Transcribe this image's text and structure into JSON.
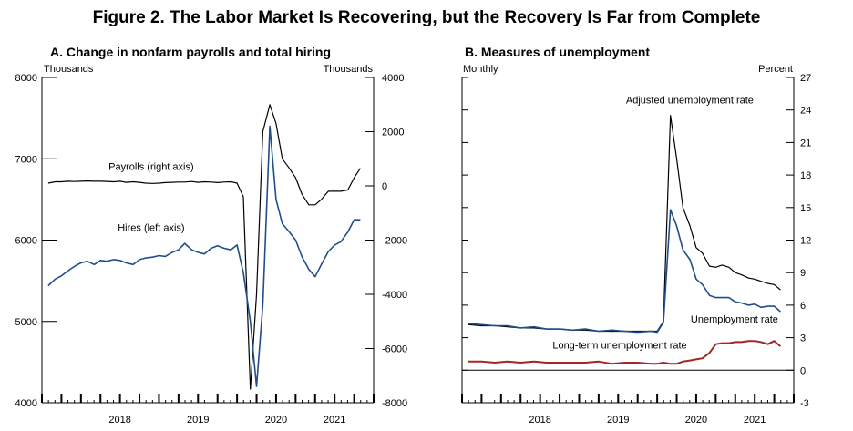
{
  "figure_title": "Figure 2. The Labor Market Is Recovering, but the Recovery Is Far from Complete",
  "colors": {
    "black": "#000000",
    "blue": "#1f4e8c",
    "red": "#a3262a"
  },
  "chart_data": [
    {
      "type": "line",
      "title": "A. Change in nonfarm payrolls and total hiring",
      "left_unit": "Thousands",
      "right_unit": "Thousands",
      "x_axis": {
        "labels": [
          "2018",
          "2019",
          "2020",
          "2021"
        ],
        "label_positions": [
          2018.5,
          2019.5,
          2020.5,
          2021.25
        ],
        "range": [
          2017.5,
          2021.75
        ]
      },
      "y_left": {
        "range": [
          4000,
          8000
        ],
        "ticks": [
          4000,
          5000,
          6000,
          7000,
          8000
        ]
      },
      "y_right": {
        "range": [
          -8000,
          4000
        ],
        "ticks": [
          -8000,
          -6000,
          -4000,
          -2000,
          0,
          2000,
          4000
        ]
      },
      "series": [
        {
          "name": "Payrolls (right axis)",
          "axis": "right",
          "color": "#000000",
          "x": [
            2017.58,
            2017.67,
            2017.75,
            2017.83,
            2017.92,
            2018.0,
            2018.08,
            2018.17,
            2018.25,
            2018.33,
            2018.42,
            2018.5,
            2018.58,
            2018.67,
            2018.75,
            2018.83,
            2018.92,
            2019.0,
            2019.08,
            2019.17,
            2019.25,
            2019.33,
            2019.42,
            2019.5,
            2019.58,
            2019.67,
            2019.75,
            2019.83,
            2019.92,
            2020.0,
            2020.08,
            2020.17,
            2020.25,
            2020.33,
            2020.42,
            2020.5,
            2020.58,
            2020.67,
            2020.75,
            2020.83,
            2020.92,
            2021.0,
            2021.08,
            2021.17,
            2021.25,
            2021.33,
            2021.42,
            2021.5,
            2021.58
          ],
          "values": [
            100,
            150,
            150,
            170,
            160,
            170,
            180,
            170,
            170,
            165,
            150,
            170,
            130,
            150,
            130,
            100,
            90,
            100,
            120,
            130,
            140,
            140,
            160,
            130,
            150,
            140,
            120,
            140,
            150,
            100,
            -400,
            -7500,
            -4000,
            2000,
            3000,
            2300,
            1000,
            650,
            300,
            -300,
            -700,
            -700,
            -500,
            -200,
            -200,
            -200,
            -150,
            300,
            650
          ],
          "label_x": 2018.9,
          "label_y": 580
        },
        {
          "name": "Hires (left axis)",
          "axis": "left",
          "color": "#1f4e8c",
          "x": [
            2017.58,
            2017.67,
            2017.75,
            2017.83,
            2017.92,
            2018.0,
            2018.08,
            2018.17,
            2018.25,
            2018.33,
            2018.42,
            2018.5,
            2018.58,
            2018.67,
            2018.75,
            2018.83,
            2018.92,
            2019.0,
            2019.08,
            2019.17,
            2019.25,
            2019.33,
            2019.42,
            2019.5,
            2019.58,
            2019.67,
            2019.75,
            2019.83,
            2019.92,
            2020.0,
            2020.08,
            2020.17,
            2020.25,
            2020.33,
            2020.42,
            2020.5,
            2020.58,
            2020.67,
            2020.75,
            2020.83,
            2020.92,
            2021.0,
            2021.08,
            2021.17,
            2021.25,
            2021.33,
            2021.42,
            2021.5,
            2021.58
          ],
          "values": [
            5440,
            5520,
            5560,
            5620,
            5680,
            5720,
            5740,
            5700,
            5750,
            5740,
            5760,
            5750,
            5720,
            5700,
            5760,
            5780,
            5790,
            5810,
            5800,
            5850,
            5880,
            5960,
            5880,
            5850,
            5830,
            5900,
            5930,
            5900,
            5880,
            5940,
            5600,
            5000,
            4200,
            5200,
            7400,
            6500,
            6200,
            6100,
            6000,
            5800,
            5640,
            5550,
            5700,
            5860,
            5940,
            5980,
            6100,
            6250,
            6250
          ],
          "label_x": 2018.9,
          "label_y": 6110
        }
      ]
    },
    {
      "type": "line",
      "title": "B. Measures of unemployment",
      "left_unit": "Monthly",
      "right_unit": "Percent",
      "x_axis": {
        "labels": [
          "2018",
          "2019",
          "2020",
          "2021"
        ],
        "label_positions": [
          2018.5,
          2019.5,
          2020.5,
          2021.25
        ],
        "range": [
          2017.5,
          2021.75
        ]
      },
      "y_right": {
        "range": [
          -3,
          27
        ],
        "ticks": [
          -3,
          0,
          3,
          6,
          9,
          12,
          15,
          18,
          21,
          24,
          27
        ]
      },
      "series": [
        {
          "name": "Adjusted unemployment rate",
          "axis": "right",
          "color": "#000000",
          "x": [
            2017.58,
            2017.75,
            2017.92,
            2018.08,
            2018.25,
            2018.42,
            2018.58,
            2018.75,
            2018.92,
            2019.08,
            2019.25,
            2019.42,
            2019.58,
            2019.75,
            2019.92,
            2020.0,
            2020.08,
            2020.17,
            2020.25,
            2020.33,
            2020.42,
            2020.5,
            2020.58,
            2020.67,
            2020.75,
            2020.83,
            2020.92,
            2021.0,
            2021.08,
            2021.17,
            2021.25,
            2021.33,
            2021.42,
            2021.5,
            2021.58
          ],
          "values": [
            4.2,
            4.1,
            4.1,
            4.0,
            3.9,
            3.9,
            3.8,
            3.8,
            3.7,
            3.7,
            3.6,
            3.6,
            3.6,
            3.6,
            3.6,
            3.6,
            4.5,
            23.5,
            19.5,
            15.0,
            13.3,
            11.3,
            10.8,
            9.6,
            9.5,
            9.7,
            9.5,
            9.0,
            8.8,
            8.5,
            8.4,
            8.2,
            8.0,
            7.9,
            7.4
          ]
        },
        {
          "name": "Unemployment rate",
          "axis": "right",
          "color": "#1f4e8c",
          "x": [
            2017.58,
            2017.75,
            2017.92,
            2018.08,
            2018.25,
            2018.42,
            2018.58,
            2018.75,
            2018.92,
            2019.08,
            2019.25,
            2019.42,
            2019.58,
            2019.75,
            2019.92,
            2020.0,
            2020.08,
            2020.17,
            2020.25,
            2020.33,
            2020.42,
            2020.5,
            2020.58,
            2020.67,
            2020.75,
            2020.83,
            2020.92,
            2021.0,
            2021.08,
            2021.17,
            2021.25,
            2021.33,
            2021.42,
            2021.5,
            2021.58
          ],
          "values": [
            4.3,
            4.2,
            4.1,
            4.1,
            3.9,
            4.0,
            3.8,
            3.8,
            3.7,
            3.8,
            3.6,
            3.7,
            3.6,
            3.5,
            3.6,
            3.5,
            4.4,
            14.8,
            13.3,
            11.1,
            10.2,
            8.4,
            7.9,
            6.9,
            6.7,
            6.7,
            6.7,
            6.3,
            6.2,
            6.0,
            6.1,
            5.8,
            5.9,
            5.9,
            5.4
          ]
        },
        {
          "name": "Long-term unemployment rate",
          "axis": "right",
          "color": "#a3262a",
          "x": [
            2017.58,
            2017.75,
            2017.92,
            2018.08,
            2018.25,
            2018.42,
            2018.58,
            2018.75,
            2018.92,
            2019.08,
            2019.25,
            2019.42,
            2019.58,
            2019.75,
            2019.92,
            2020.0,
            2020.08,
            2020.17,
            2020.25,
            2020.33,
            2020.42,
            2020.5,
            2020.58,
            2020.67,
            2020.75,
            2020.83,
            2020.92,
            2021.0,
            2021.08,
            2021.17,
            2021.25,
            2021.33,
            2021.42,
            2021.5,
            2021.58
          ],
          "values": [
            0.8,
            0.8,
            0.7,
            0.8,
            0.7,
            0.8,
            0.7,
            0.7,
            0.7,
            0.7,
            0.8,
            0.6,
            0.7,
            0.7,
            0.6,
            0.6,
            0.7,
            0.6,
            0.6,
            0.8,
            0.9,
            1.0,
            1.1,
            1.6,
            2.4,
            2.5,
            2.5,
            2.6,
            2.6,
            2.7,
            2.7,
            2.6,
            2.4,
            2.7,
            2.2
          ]
        }
      ]
    }
  ]
}
